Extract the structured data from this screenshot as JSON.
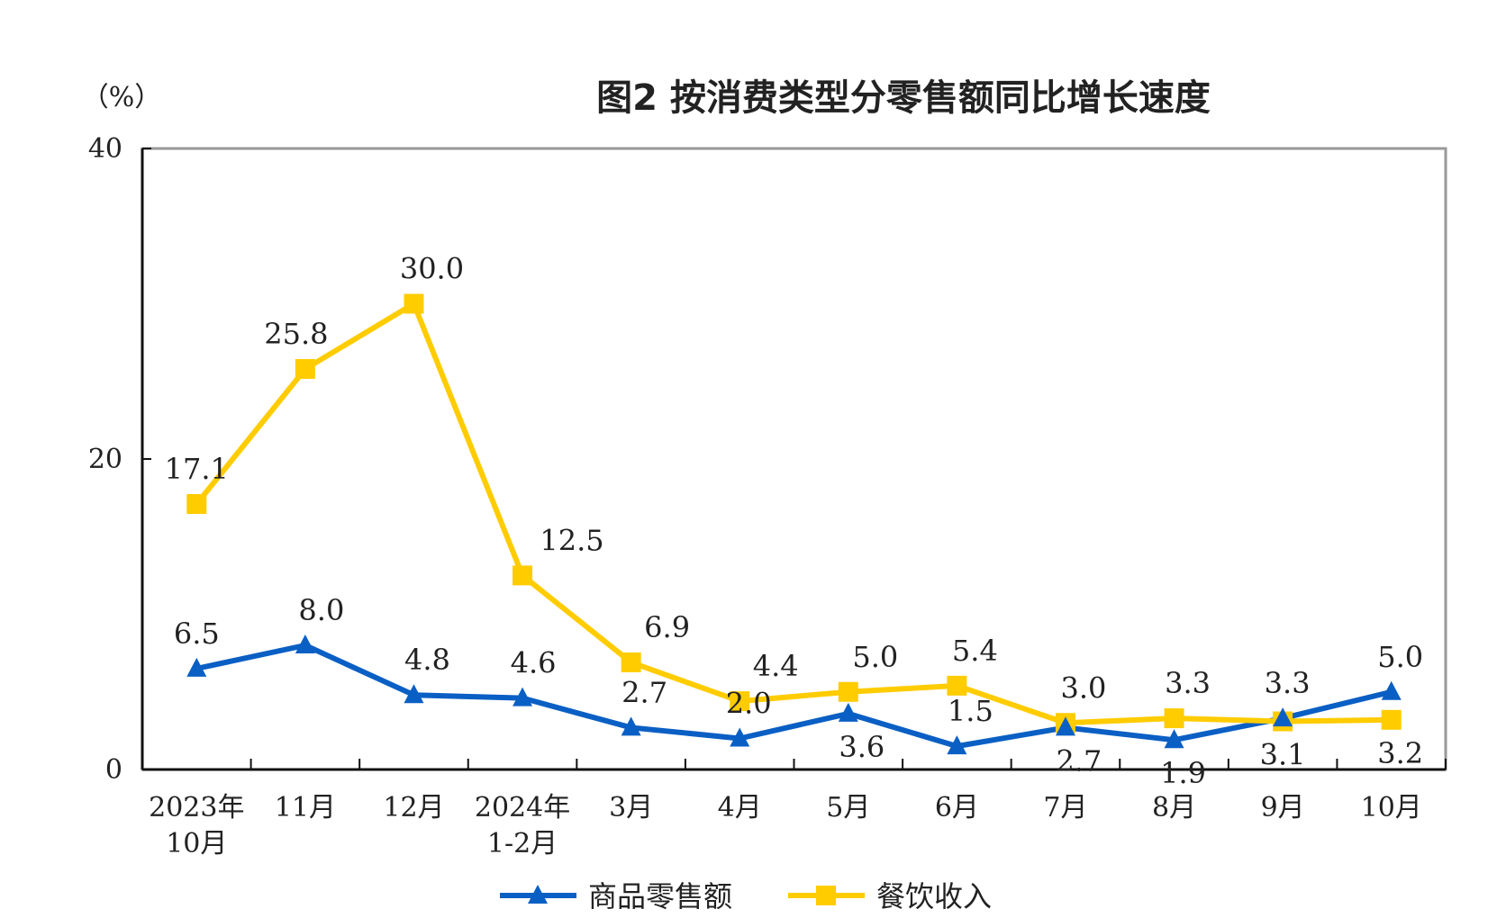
{
  "chart_data": {
    "type": "line",
    "title": "图2  按消费类型分零售额同比增长速度",
    "ylabel": "（%）",
    "xlabel": "",
    "ylim": [
      0,
      40
    ],
    "yticks": [
      "0",
      "20",
      "40"
    ],
    "categories": [
      [
        "2023年",
        "10月"
      ],
      [
        "11月"
      ],
      [
        "12月"
      ],
      [
        "2024年",
        "1-2月"
      ],
      [
        "3月"
      ],
      [
        "4月"
      ],
      [
        "5月"
      ],
      [
        "6月"
      ],
      [
        "7月"
      ],
      [
        "8月"
      ],
      [
        "9月"
      ],
      [
        "10月"
      ]
    ],
    "series": [
      {
        "name": "商品零售额",
        "color": "#0a5fc4",
        "marker": "triangle",
        "values": [
          6.5,
          8.0,
          4.8,
          4.6,
          2.7,
          2.0,
          3.6,
          1.5,
          2.7,
          1.9,
          3.3,
          5.0
        ],
        "labels": [
          "6.5",
          "8.0",
          "4.8",
          "4.6",
          "2.7",
          "2.0",
          "3.6",
          "1.5",
          "2.7",
          "1.9",
          "3.3",
          "5.0"
        ]
      },
      {
        "name": "餐饮收入",
        "color": "#ffcc00",
        "marker": "square",
        "values": [
          17.1,
          25.8,
          30.0,
          12.5,
          6.9,
          4.4,
          5.0,
          5.4,
          3.0,
          3.3,
          3.1,
          3.2
        ],
        "labels": [
          "17.1",
          "25.8",
          "30.0",
          "12.5",
          "6.9",
          "4.4",
          "5.0",
          "5.4",
          "3.0",
          "3.3",
          "3.1",
          "3.2"
        ]
      }
    ],
    "grid": false,
    "legend_position": "bottom"
  }
}
